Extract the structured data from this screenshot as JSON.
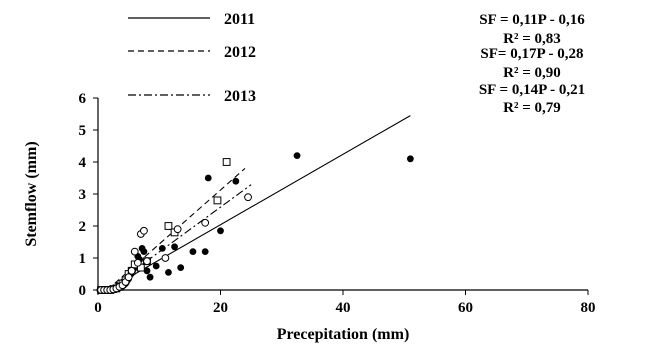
{
  "chart_data": {
    "type": "scatter",
    "title": "",
    "xlabel": "Precepitation (mm)",
    "ylabel": "Stemflow (mm)",
    "xlim": [
      0,
      80
    ],
    "ylim": [
      0,
      6
    ],
    "x_ticks": [
      0,
      20,
      40,
      60,
      80
    ],
    "y_ticks": [
      0,
      1,
      2,
      3,
      4,
      5,
      6
    ],
    "grid": false,
    "legend_position": "top-left",
    "series": [
      {
        "name": "2011",
        "marker": "filled-circle",
        "line_style": "solid",
        "color": "#000000",
        "x": [
          0.3,
          0.6,
          0.9,
          1.2,
          1.5,
          1.8,
          2.1,
          2.4,
          2.7,
          3.0,
          3.3,
          3.6,
          3.9,
          4.2,
          4.5,
          4.8,
          5.0,
          5.4,
          5.8,
          6.2,
          6.5,
          6.8,
          7.2,
          7.5,
          8.0,
          8.5,
          9.5,
          10.5,
          11.5,
          12.5,
          13.5,
          15.5,
          17.5,
          18.0,
          20.0,
          22.5,
          32.5,
          51.0
        ],
        "y": [
          0.0,
          0.0,
          0.0,
          0.0,
          0.0,
          0.0,
          0.0,
          0.0,
          0.02,
          0.04,
          0.05,
          0.08,
          0.1,
          0.15,
          0.2,
          0.3,
          0.35,
          0.5,
          0.65,
          0.8,
          1.05,
          0.95,
          1.3,
          1.2,
          0.6,
          0.4,
          0.75,
          1.3,
          0.55,
          1.35,
          0.7,
          1.2,
          1.2,
          3.5,
          1.85,
          3.4,
          4.2,
          4.1
        ],
        "fit": {
          "slope": 0.11,
          "intercept": -0.16,
          "x_range": [
            1.5,
            51
          ]
        }
      },
      {
        "name": "2012",
        "marker": "open-square",
        "line_style": "dashed",
        "color": "#000000",
        "x": [
          0.5,
          1.0,
          1.5,
          2.0,
          2.5,
          3.0,
          3.5,
          4.0,
          4.5,
          5.0,
          5.5,
          6.0,
          7.0,
          8.0,
          11.5,
          12.5,
          19.5,
          21.0
        ],
        "y": [
          0.0,
          0.0,
          0.0,
          0.0,
          0.03,
          0.05,
          0.1,
          0.2,
          0.3,
          0.5,
          0.6,
          0.8,
          0.7,
          0.9,
          2.0,
          1.8,
          2.8,
          4.0
        ],
        "fit": {
          "slope": 0.17,
          "intercept": -0.28,
          "x_range": [
            1.5,
            24
          ]
        }
      },
      {
        "name": "2013",
        "marker": "open-circle",
        "line_style": "dash-dot",
        "color": "#000000",
        "x": [
          0.5,
          1.0,
          1.5,
          2.0,
          2.5,
          3.0,
          3.5,
          4.0,
          4.5,
          5.0,
          5.5,
          6.0,
          6.5,
          7.0,
          7.5,
          8.0,
          11.0,
          13.0,
          17.5,
          24.5
        ],
        "y": [
          0.0,
          0.0,
          0.0,
          0.0,
          0.02,
          0.05,
          0.1,
          0.15,
          0.25,
          0.4,
          0.6,
          1.2,
          0.85,
          1.75,
          1.85,
          0.9,
          1.0,
          1.9,
          2.1,
          2.9
        ],
        "fit": {
          "slope": 0.14,
          "intercept": -0.21,
          "x_range": [
            1.5,
            25
          ]
        }
      }
    ],
    "legend": [
      {
        "label": "2011",
        "line_style": "solid"
      },
      {
        "label": "2012",
        "line_style": "dashed"
      },
      {
        "label": "2013",
        "line_style": "dash-dot"
      }
    ],
    "annotations": [
      {
        "equation": "SF = 0,11P - 0,16",
        "r2": "R² = 0,83"
      },
      {
        "equation": "SF= 0,17P - 0,28",
        "r2": "R² = 0,90"
      },
      {
        "equation": "SF = 0,14P - 0,21",
        "r2": "R² = 0,79"
      }
    ]
  }
}
